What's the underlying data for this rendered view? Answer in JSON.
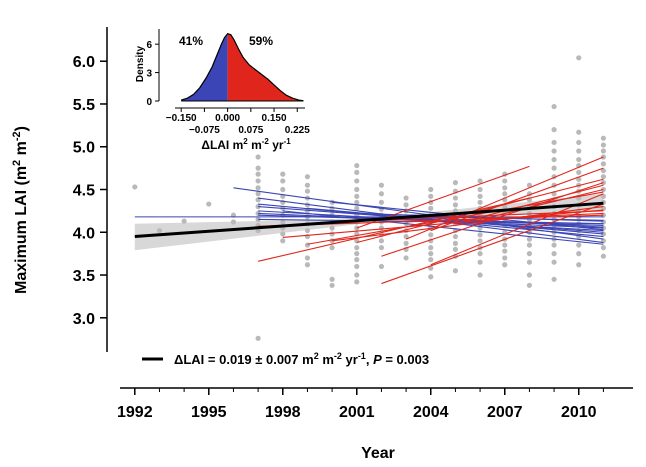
{
  "colors": {
    "decrease": "#3b45b5",
    "increase": "#e0261c",
    "points": "#b9b9b9",
    "trend": "#000000",
    "ci_band": "#d8d8d8"
  },
  "chart_data": [
    {
      "type": "scatter",
      "xlabel": "Year",
      "ylabel_text": "Maximum LAI (m",
      "ylabel_sup1": "2",
      "ylabel_mid": " m",
      "ylabel_sup2": "-2",
      "ylabel_end": ")",
      "xlim": [
        1991.4,
        2012.2
      ],
      "ylim": [
        2.6,
        6.4
      ],
      "x_ticks": [
        {
          "v": 1992,
          "label": "1992"
        },
        {
          "v": 1995,
          "label": "1995"
        },
        {
          "v": 1998,
          "label": "1998"
        },
        {
          "v": 2001,
          "label": "2001"
        },
        {
          "v": 2004,
          "label": "2004"
        },
        {
          "v": 2007,
          "label": "2007"
        },
        {
          "v": 2010,
          "label": "2010"
        }
      ],
      "x_minor_ticks": [
        1993,
        1994,
        1996,
        1997,
        1999,
        2000,
        2002,
        2003,
        2005,
        2006,
        2008,
        2009,
        2011
      ],
      "y_ticks": [
        {
          "v": 3.0,
          "label": "3.0"
        },
        {
          "v": 3.5,
          "label": "3.5"
        },
        {
          "v": 4.0,
          "label": "4.0"
        },
        {
          "v": 4.5,
          "label": "4.5"
        },
        {
          "v": 5.0,
          "label": "5.0"
        },
        {
          "v": 5.5,
          "label": "5.5"
        },
        {
          "v": 6.0,
          "label": "6.0"
        }
      ],
      "points_by_year": [
        {
          "x": 1992,
          "y": [
            4.53
          ]
        },
        {
          "x": 1993,
          "y": [
            4.02
          ]
        },
        {
          "x": 1994,
          "y": [
            4.13
          ]
        },
        {
          "x": 1995,
          "y": [
            4.33
          ]
        },
        {
          "x": 1996,
          "y": [
            4.2,
            4.12
          ]
        },
        {
          "x": 1997,
          "y": [
            4.88,
            4.75,
            4.68,
            4.6,
            4.52,
            4.45,
            4.38,
            4.3,
            4.22,
            4.15,
            4.08,
            4.02,
            2.76
          ]
        },
        {
          "x": 1998,
          "y": [
            4.68,
            4.6,
            4.5,
            4.42,
            4.35,
            4.28,
            4.2,
            4.12,
            4.05,
            3.98,
            3.9
          ]
        },
        {
          "x": 1999,
          "y": [
            4.65,
            4.55,
            4.48,
            4.4,
            4.32,
            4.25,
            4.18,
            4.1,
            4.02,
            3.95,
            3.85,
            3.7,
            3.62
          ]
        },
        {
          "x": 2000,
          "y": [
            4.35,
            4.28,
            4.2,
            4.12,
            4.05,
            3.98,
            3.9,
            3.82,
            3.45,
            3.38
          ]
        },
        {
          "x": 2001,
          "y": [
            4.78,
            4.7,
            4.6,
            4.5,
            4.42,
            4.35,
            4.28,
            4.2,
            4.12,
            4.05,
            3.98,
            3.9,
            3.82,
            3.75,
            3.68,
            3.6,
            3.5,
            3.42
          ]
        },
        {
          "x": 2002,
          "y": [
            4.55,
            4.45,
            4.35,
            4.27,
            4.2,
            4.12,
            4.05,
            3.97,
            3.9,
            3.82,
            3.6
          ]
        },
        {
          "x": 2003,
          "y": [
            4.4,
            4.32,
            4.25,
            4.18,
            4.1,
            4.02,
            3.95,
            3.87,
            3.8,
            3.7
          ]
        },
        {
          "x": 2004,
          "y": [
            4.5,
            4.42,
            4.35,
            4.28,
            4.2,
            4.12,
            4.05,
            3.97,
            3.9,
            3.82,
            3.75,
            3.68,
            3.58,
            3.48
          ]
        },
        {
          "x": 2005,
          "y": [
            4.58,
            4.48,
            4.4,
            4.32,
            4.25,
            4.18,
            4.1,
            4.02,
            3.95,
            3.87,
            3.8,
            3.72,
            3.55
          ]
        },
        {
          "x": 2006,
          "y": [
            4.6,
            4.5,
            4.42,
            4.35,
            4.28,
            4.2,
            4.12,
            4.05,
            3.97,
            3.9,
            3.82,
            3.75,
            3.65,
            3.5
          ]
        },
        {
          "x": 2007,
          "y": [
            4.68,
            4.6,
            4.52,
            4.45,
            4.38,
            4.3,
            4.22,
            4.15,
            4.08,
            4.0,
            3.92,
            3.85,
            3.78,
            3.7,
            3.62
          ]
        },
        {
          "x": 2008,
          "y": [
            4.55,
            4.45,
            4.38,
            4.3,
            4.22,
            4.15,
            4.07,
            4.0,
            3.92,
            3.85,
            3.75,
            3.65,
            3.5,
            3.38
          ]
        },
        {
          "x": 2009,
          "y": [
            5.47,
            5.2,
            5.05,
            4.95,
            4.85,
            4.75,
            4.65,
            4.55,
            4.45,
            4.38,
            4.3,
            4.22,
            4.15,
            4.08,
            4.0,
            3.92,
            3.85,
            3.75,
            3.65,
            3.45
          ]
        },
        {
          "x": 2010,
          "y": [
            6.04,
            5.17,
            5.05,
            4.95,
            4.85,
            4.78,
            4.7,
            4.62,
            4.55,
            4.48,
            4.4,
            4.32,
            4.25,
            4.18,
            4.1,
            4.02,
            3.95,
            3.85,
            3.75,
            3.62
          ]
        },
        {
          "x": 2011,
          "y": [
            5.1,
            5.02,
            4.95,
            4.88,
            4.8,
            4.72,
            4.65,
            4.58,
            4.5,
            4.42,
            4.35,
            4.28,
            4.2,
            4.12,
            4.05,
            3.98,
            3.9,
            3.82,
            3.72
          ]
        }
      ],
      "site_trends_decreasing": [
        {
          "x": [
            1992,
            2011
          ],
          "y": [
            4.18,
            4.18
          ]
        },
        {
          "x": [
            1996,
            2011
          ],
          "y": [
            4.52,
            3.92
          ]
        },
        {
          "x": [
            1997,
            2011
          ],
          "y": [
            4.4,
            3.88
          ]
        },
        {
          "x": [
            1997,
            2011
          ],
          "y": [
            4.33,
            3.95
          ]
        },
        {
          "x": [
            1997,
            2011
          ],
          "y": [
            4.3,
            4.0
          ]
        },
        {
          "x": [
            1997,
            2011
          ],
          "y": [
            4.25,
            4.02
          ]
        },
        {
          "x": [
            1997,
            2011
          ],
          "y": [
            4.22,
            4.05
          ]
        },
        {
          "x": [
            1997,
            2011
          ],
          "y": [
            4.2,
            4.08
          ]
        },
        {
          "x": [
            1997,
            2011
          ],
          "y": [
            4.15,
            4.1
          ]
        },
        {
          "x": [
            1998,
            2011
          ],
          "y": [
            4.25,
            3.86
          ]
        },
        {
          "x": [
            1999,
            2011
          ],
          "y": [
            4.28,
            3.98
          ]
        },
        {
          "x": [
            2000,
            2011
          ],
          "y": [
            4.35,
            4.03
          ]
        },
        {
          "x": [
            2001,
            2011
          ],
          "y": [
            4.22,
            4.13
          ]
        },
        {
          "x": [
            2002,
            2011
          ],
          "y": [
            4.2,
            4.06
          ]
        },
        {
          "x": [
            2003,
            2011
          ],
          "y": [
            4.15,
            4.1
          ]
        },
        {
          "x": [
            2004,
            2011
          ],
          "y": [
            4.18,
            4.14
          ]
        }
      ],
      "site_trends_increasing": [
        {
          "x": [
            1997,
            2008
          ],
          "y": [
            3.66,
            4.4
          ]
        },
        {
          "x": [
            1997,
            2011
          ],
          "y": [
            4.07,
            4.2
          ]
        },
        {
          "x": [
            1998,
            2011
          ],
          "y": [
            3.94,
            4.26
          ]
        },
        {
          "x": [
            1999,
            2011
          ],
          "y": [
            3.86,
            4.47
          ]
        },
        {
          "x": [
            2000,
            2011
          ],
          "y": [
            4.12,
            4.25
          ]
        },
        {
          "x": [
            2000,
            2011
          ],
          "y": [
            3.9,
            4.3
          ]
        },
        {
          "x": [
            2001,
            2008
          ],
          "y": [
            4.05,
            4.77
          ]
        },
        {
          "x": [
            2001,
            2011
          ],
          "y": [
            3.88,
            4.62
          ]
        },
        {
          "x": [
            2002,
            2011
          ],
          "y": [
            3.72,
            4.58
          ]
        },
        {
          "x": [
            2002,
            2011
          ],
          "y": [
            3.4,
            4.33
          ]
        },
        {
          "x": [
            2003,
            2011
          ],
          "y": [
            3.92,
            4.88
          ]
        },
        {
          "x": [
            2004,
            2011
          ],
          "y": [
            4.02,
            4.75
          ]
        },
        {
          "x": [
            2004,
            2011
          ],
          "y": [
            3.62,
            4.45
          ]
        },
        {
          "x": [
            2005,
            2011
          ],
          "y": [
            4.1,
            4.55
          ]
        },
        {
          "x": [
            2006,
            2011
          ],
          "y": [
            4.15,
            4.5
          ]
        },
        {
          "x": [
            2003,
            2011
          ],
          "y": [
            4.12,
            4.22
          ]
        }
      ],
      "overall_trend": {
        "x": [
          1992,
          2011
        ],
        "y": [
          3.95,
          4.34
        ]
      },
      "ci_band": {
        "x": [
          1992,
          2001.5,
          2011
        ],
        "lower": [
          3.79,
          4.11,
          4.26
        ],
        "upper": [
          4.1,
          4.16,
          4.45
        ]
      },
      "legend": {
        "text": "ΔLAI = 0.019 ± 0.007 m",
        "sup1": "2",
        "mid": " m",
        "sup2": "-2",
        "mid2": " yr",
        "sup3": "-1",
        "p_pre": ", ",
        "p_italic": "P",
        "p_post": " = 0.003"
      }
    },
    {
      "type": "area",
      "xlabel_text": "ΔLAI m",
      "xlabel_sup1": "2",
      "xlabel_mid": " m",
      "xlabel_sup2": "-2",
      "xlabel_mid2": " yr",
      "xlabel_sup3": "-1",
      "ylabel": "Density",
      "xlim": [
        -0.17,
        0.25
      ],
      "ylim": [
        0,
        7.6
      ],
      "x_ticks_upper": [
        {
          "v": -0.15,
          "label": "−0.150"
        },
        {
          "v": 0.0,
          "label": "0.000"
        },
        {
          "v": 0.15,
          "label": "0.150"
        }
      ],
      "x_ticks_lower": [
        {
          "v": -0.075,
          "label": "−0.075"
        },
        {
          "v": 0.075,
          "label": "0.075"
        },
        {
          "v": 0.225,
          "label": "0.225"
        }
      ],
      "y_ticks": [
        {
          "v": 0,
          "label": "0"
        },
        {
          "v": 3,
          "label": "3"
        },
        {
          "v": 6,
          "label": "6"
        }
      ],
      "density": {
        "x": [
          -0.15,
          -0.13,
          -0.11,
          -0.09,
          -0.07,
          -0.05,
          -0.035,
          -0.02,
          -0.01,
          0.0,
          0.01,
          0.02,
          0.035,
          0.05,
          0.07,
          0.09,
          0.11,
          0.13,
          0.15,
          0.17,
          0.19,
          0.21,
          0.23,
          0.245
        ],
        "y": [
          0.1,
          0.3,
          0.7,
          1.4,
          2.4,
          3.6,
          4.8,
          6.0,
          6.7,
          7.1,
          7.0,
          6.5,
          5.5,
          4.6,
          3.8,
          3.3,
          2.8,
          2.3,
          1.7,
          1.1,
          0.6,
          0.3,
          0.1,
          0.03
        ]
      },
      "split_at": 0.0,
      "pct_left": "41%",
      "pct_right": "59%"
    }
  ]
}
